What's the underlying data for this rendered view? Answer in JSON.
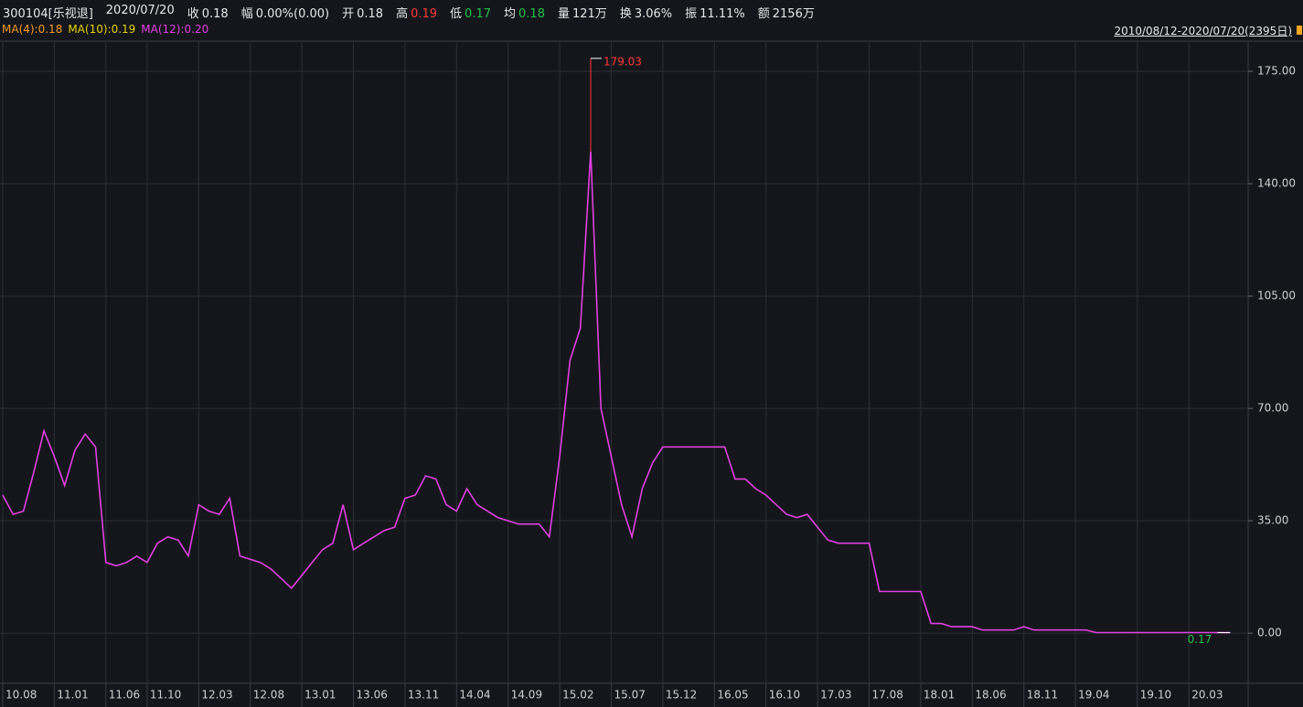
{
  "header": [
    {
      "text": "300104[乐视退]"
    },
    {
      "text": "2020/07/20"
    },
    {
      "label": "收",
      "value": "0.18"
    },
    {
      "label": "幅",
      "value": "0.00%(0.00)"
    },
    {
      "label": "开",
      "value": "0.18"
    },
    {
      "label": "高",
      "value": "0.19",
      "color": "#ff3b3b"
    },
    {
      "label": "低",
      "value": "0.17",
      "color": "#22c04a"
    },
    {
      "label": "均",
      "value": "0.18",
      "color": "#22c04a"
    },
    {
      "label": "量",
      "value": "121万"
    },
    {
      "label": "换",
      "value": "3.06%"
    },
    {
      "label": "振",
      "value": "11.11%"
    },
    {
      "label": "额",
      "value": "2156万"
    }
  ],
  "ma_legend": [
    {
      "text": "MA(4):0.18",
      "color": "#f59a23"
    },
    {
      "text": "MA(10):0.19",
      "color": "#e6d200"
    },
    {
      "text": "MA(12):0.20",
      "color": "#e040e0"
    }
  ],
  "range_label": "2010/08/12-2020/07/20(2395日)",
  "chart_data": {
    "type": "line",
    "categories": [
      "10.08",
      null,
      null,
      null,
      null,
      "11.01",
      null,
      null,
      null,
      null,
      "11.06",
      null,
      null,
      null,
      "11.10",
      null,
      null,
      null,
      null,
      "12.03",
      null,
      null,
      null,
      null,
      "12.08",
      null,
      null,
      null,
      null,
      "13.01",
      null,
      null,
      null,
      null,
      "13.06",
      null,
      null,
      null,
      null,
      "13.11",
      null,
      null,
      null,
      null,
      "14.04",
      null,
      null,
      null,
      null,
      "14.09",
      null,
      null,
      null,
      null,
      "15.02",
      null,
      null,
      null,
      null,
      "15.07",
      null,
      null,
      null,
      null,
      "15.12",
      null,
      null,
      null,
      null,
      "16.05",
      null,
      null,
      null,
      null,
      "16.10",
      null,
      null,
      null,
      null,
      "17.03",
      null,
      null,
      null,
      null,
      "17.08",
      null,
      null,
      null,
      null,
      "18.01",
      null,
      null,
      null,
      null,
      "18.06",
      null,
      null,
      null,
      null,
      "18.11",
      null,
      null,
      null,
      null,
      "19.04",
      null,
      null,
      null,
      null,
      null,
      "19.10",
      null,
      null,
      null,
      null,
      "20.03",
      null,
      null,
      null,
      null
    ],
    "series": [
      {
        "color": "#e040e0",
        "values": [
          43,
          37,
          38,
          50,
          63,
          55,
          46,
          57,
          62,
          58,
          22,
          21,
          22,
          24,
          22,
          28,
          30,
          29,
          24,
          40,
          38,
          37,
          42,
          24,
          23,
          22,
          20,
          17,
          14,
          18,
          22,
          26,
          28,
          40,
          26,
          28,
          30,
          32,
          33,
          42,
          43,
          49,
          48,
          40,
          38,
          45,
          40,
          38,
          36,
          35,
          34,
          34,
          34,
          30,
          55,
          85,
          95,
          150,
          70,
          55,
          40,
          30,
          45,
          53,
          58,
          58,
          58,
          58,
          58,
          58,
          58,
          48,
          48,
          45,
          43,
          40,
          37,
          36,
          37,
          33,
          29,
          28,
          28,
          28,
          28,
          13,
          13,
          13,
          13,
          13,
          3,
          3,
          2,
          2,
          2,
          1,
          1,
          1,
          1,
          2,
          1,
          1,
          1,
          1,
          1,
          1,
          0.2,
          0.2,
          0.2,
          0.2,
          0.2,
          0.2,
          0.2,
          0.2,
          0.2,
          0.2,
          0.2,
          0.2,
          0.2,
          0.17
        ]
      }
    ],
    "high": 179.03,
    "low": 0.17,
    "ylim": [
      -15.6,
      184.4
    ],
    "yticks": [
      {
        "value": 0,
        "label": "0.00"
      },
      {
        "value": 35,
        "label": "35.00"
      },
      {
        "value": 70,
        "label": "70.00"
      },
      {
        "value": 105,
        "label": "105.00"
      },
      {
        "value": 140,
        "label": "140.00"
      },
      {
        "value": 175,
        "label": "175.00"
      }
    ],
    "grid": true
  }
}
